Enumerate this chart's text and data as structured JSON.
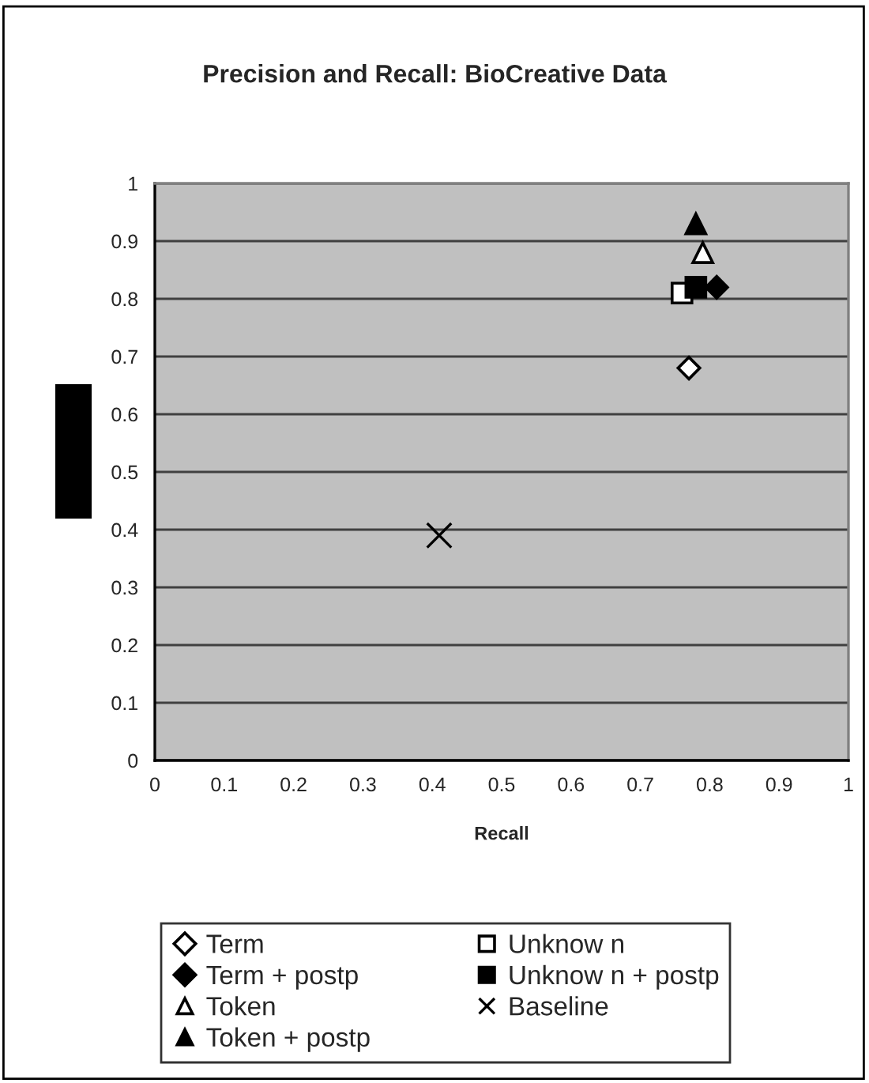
{
  "chart_data": {
    "type": "scatter",
    "title": "Precision and Recall: BioCreative Data",
    "xlabel": "Recall",
    "xlim": [
      0,
      1
    ],
    "xticks": [
      0,
      0.1,
      0.2,
      0.3,
      0.4,
      0.5,
      0.6,
      0.7,
      0.8,
      0.9,
      1
    ],
    "ylim": [
      0,
      1
    ],
    "yticks": [
      0,
      0.1,
      0.2,
      0.3,
      0.4,
      0.5,
      0.6,
      0.7,
      0.8,
      0.9,
      1
    ],
    "grid": "y",
    "legend": "bottom",
    "series": [
      {
        "name": "Term",
        "marker": "diamond",
        "color": "#ffffff",
        "x": [
          0.77
        ],
        "values": [
          0.68
        ]
      },
      {
        "name": "Token",
        "marker": "triangle",
        "color": "#ffffff",
        "x": [
          0.79
        ],
        "values": [
          0.88
        ]
      },
      {
        "name": "Unknow n",
        "marker": "square",
        "color": "#ffffff",
        "x": [
          0.76
        ],
        "values": [
          0.81
        ]
      },
      {
        "name": "Baseline",
        "marker": "cross",
        "color": "#000000",
        "x": [
          0.41
        ],
        "values": [
          0.39
        ]
      },
      {
        "name": "Term + postp",
        "marker": "diamond",
        "color": "#000000",
        "x": [
          0.81
        ],
        "values": [
          0.82
        ]
      },
      {
        "name": "Token + postp",
        "marker": "triangle",
        "color": "#000000",
        "x": [
          0.78
        ],
        "values": [
          0.93
        ]
      },
      {
        "name": "Unknow n + postp",
        "marker": "square",
        "color": "#000000",
        "x": [
          0.78
        ],
        "values": [
          0.82
        ]
      }
    ]
  }
}
